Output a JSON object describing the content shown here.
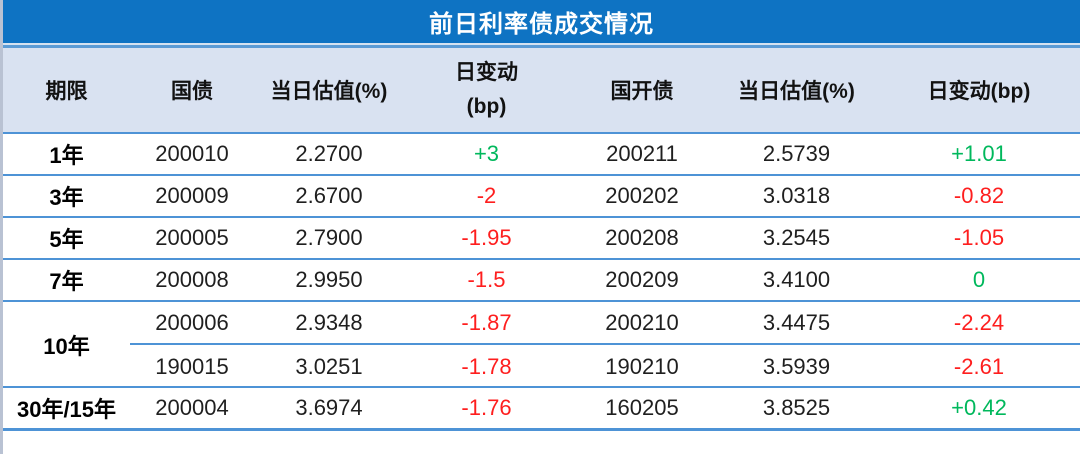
{
  "chart_data": {
    "type": "table",
    "title": "前日利率债成交情况",
    "columns": [
      {
        "label": "期限"
      },
      {
        "label": "国债"
      },
      {
        "label": "当日估值(%)"
      },
      {
        "label": "日变动",
        "label2": "(bp)"
      },
      {
        "label": "国开债"
      },
      {
        "label": "当日估值(%)"
      },
      {
        "label": "日变动(bp)"
      }
    ],
    "rows": [
      {
        "term": "1年",
        "gz_code": "200010",
        "gz_val": "2.2700",
        "gz_chg": "+3",
        "gz_dir": "up",
        "gk_code": "200211",
        "gk_val": "2.5739",
        "gk_chg": "+1.01",
        "gk_dir": "up"
      },
      {
        "term": "3年",
        "gz_code": "200009",
        "gz_val": "2.6700",
        "gz_chg": "-2",
        "gz_dir": "down",
        "gk_code": "200202",
        "gk_val": "3.0318",
        "gk_chg": "-0.82",
        "gk_dir": "down"
      },
      {
        "term": "5年",
        "gz_code": "200005",
        "gz_val": "2.7900",
        "gz_chg": "-1.95",
        "gz_dir": "down",
        "gk_code": "200208",
        "gk_val": "3.2545",
        "gk_chg": "-1.05",
        "gk_dir": "down"
      },
      {
        "term": "7年",
        "gz_code": "200008",
        "gz_val": "2.9950",
        "gz_chg": "-1.5",
        "gz_dir": "down",
        "gk_code": "200209",
        "gk_val": "3.4100",
        "gk_chg": "0",
        "gk_dir": "up"
      },
      {
        "term": "10年",
        "sub": [
          {
            "gz_code": "200006",
            "gz_val": "2.9348",
            "gz_chg": "-1.87",
            "gz_dir": "down",
            "gk_code": "200210",
            "gk_val": "3.4475",
            "gk_chg": "-2.24",
            "gk_dir": "down"
          },
          {
            "gz_code": "190015",
            "gz_val": "3.0251",
            "gz_chg": "-1.78",
            "gz_dir": "down",
            "gk_code": "190210",
            "gk_val": "3.5939",
            "gk_chg": "-2.61",
            "gk_dir": "down"
          }
        ]
      },
      {
        "term": "30年/15年",
        "gz_code": "200004",
        "gz_val": "3.6974",
        "gz_chg": "-1.76",
        "gz_dir": "down",
        "gk_code": "160205",
        "gk_val": "3.8525",
        "gk_chg": "+0.42",
        "gk_dir": "up"
      }
    ],
    "colors": {
      "title_bg": "#0e73c3",
      "header_bg": "#d9e2f1",
      "grid_line": "#4e93d6",
      "up_green": "#00b85c",
      "down_red": "#fe1e1e"
    }
  }
}
